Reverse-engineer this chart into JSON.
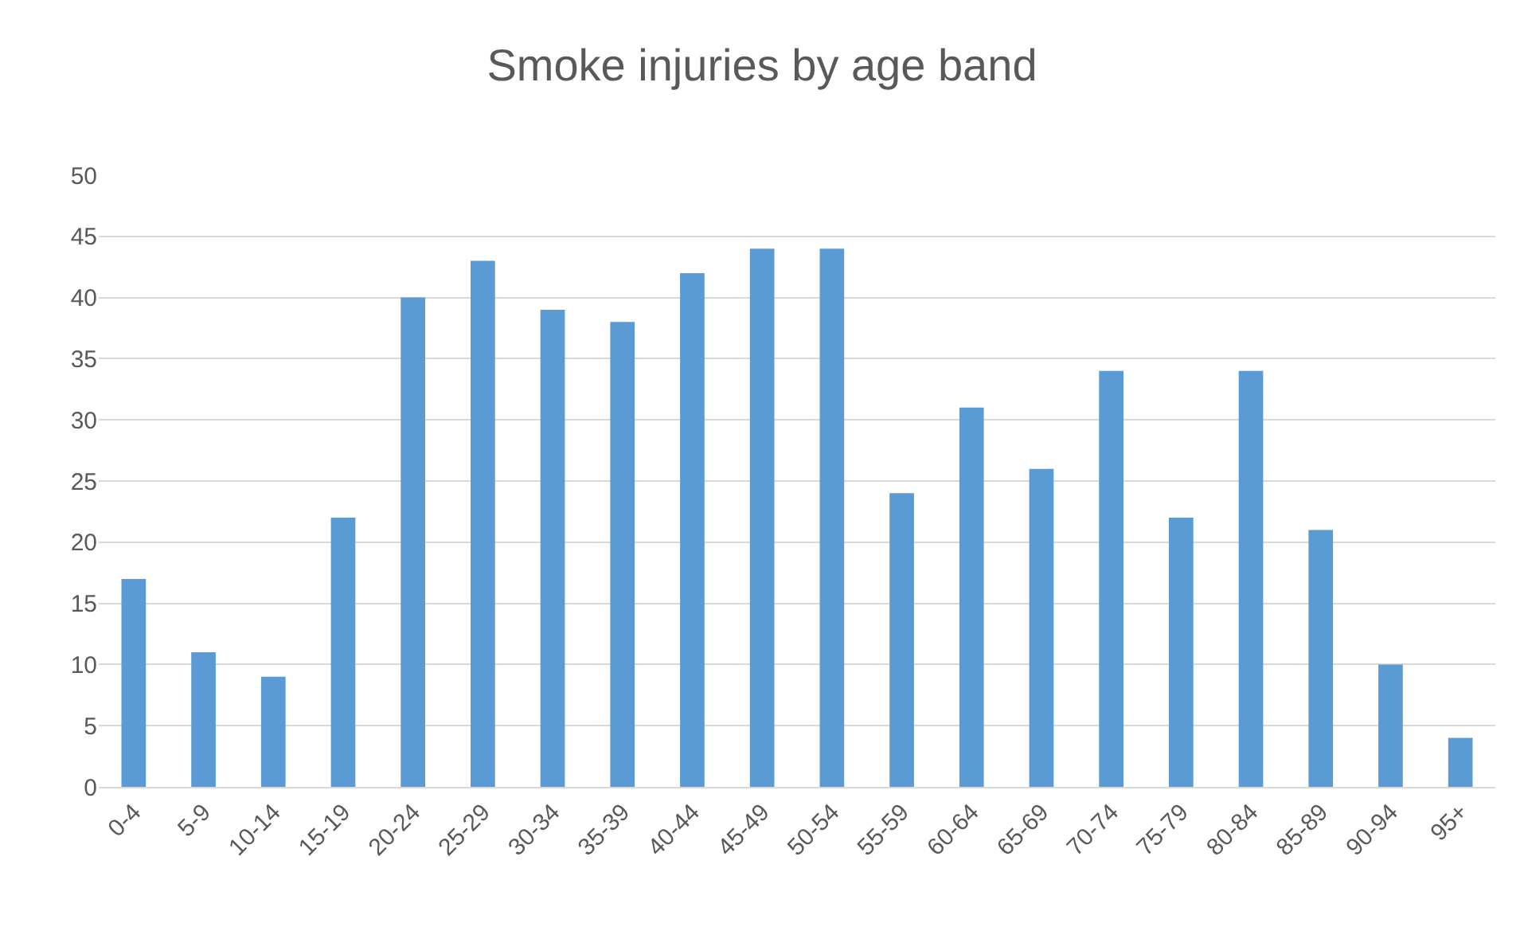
{
  "chart_data": {
    "type": "bar",
    "title": "Smoke injuries by age band",
    "categories": [
      "0-4",
      "5-9",
      "10-14",
      "15-19",
      "20-24",
      "25-29",
      "30-34",
      "35-39",
      "40-44",
      "45-49",
      "50-54",
      "55-59",
      "60-64",
      "65-69",
      "70-74",
      "75-79",
      "80-84",
      "85-89",
      "90-94",
      "95+"
    ],
    "values": [
      17,
      11,
      9,
      22,
      40,
      43,
      39,
      38,
      42,
      44,
      44,
      24,
      31,
      26,
      34,
      22,
      34,
      21,
      10,
      4
    ],
    "color": "#5b9bd5",
    "ylim": [
      0,
      50
    ],
    "yticks": [
      0,
      5,
      10,
      15,
      20,
      25,
      30,
      35,
      40,
      45,
      50
    ],
    "grid": "y"
  }
}
